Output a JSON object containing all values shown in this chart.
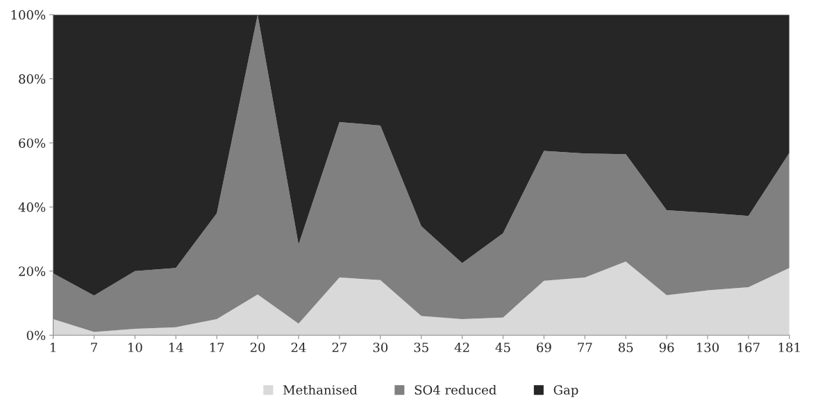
{
  "chart_data": {
    "type": "area",
    "stacked": true,
    "categories": [
      "1",
      "7",
      "10",
      "14",
      "17",
      "20",
      "24",
      "27",
      "30",
      "35",
      "42",
      "45",
      "69",
      "77",
      "85",
      "96",
      "130",
      "167",
      "181"
    ],
    "series": [
      {
        "name": "Methanised",
        "color": "#d9d9d9",
        "values": [
          5,
          1,
          2,
          2.5,
          5,
          12.7,
          3.6,
          18,
          17.2,
          6,
          5,
          5.5,
          17,
          18,
          23,
          12.5,
          14,
          15,
          21
        ]
      },
      {
        "name": "SO4 reduced",
        "color": "#808080",
        "values": [
          14.3,
          11.4,
          18,
          18.5,
          33,
          87.3,
          24.7,
          48.5,
          48.2,
          28,
          17.5,
          26.3,
          40.5,
          38.7,
          33.5,
          26.5,
          24.2,
          22.2,
          35.9
        ]
      },
      {
        "name": "Gap",
        "color": "#262626",
        "values": [
          80.7,
          87.6,
          80,
          79,
          62,
          0,
          71.7,
          33.5,
          34.6,
          66,
          77.5,
          68.2,
          42.5,
          43.3,
          43.5,
          61,
          61.8,
          62.8,
          43.1
        ]
      }
    ],
    "ylim": [
      0,
      100
    ],
    "yticks": [
      {
        "value": 0,
        "label": "0%"
      },
      {
        "value": 20,
        "label": "20%"
      },
      {
        "value": 40,
        "label": "40%"
      },
      {
        "value": 60,
        "label": "60%"
      },
      {
        "value": 80,
        "label": "80%"
      },
      {
        "value": 100,
        "label": "100%"
      }
    ],
    "grid": false,
    "legend": "bottom"
  }
}
